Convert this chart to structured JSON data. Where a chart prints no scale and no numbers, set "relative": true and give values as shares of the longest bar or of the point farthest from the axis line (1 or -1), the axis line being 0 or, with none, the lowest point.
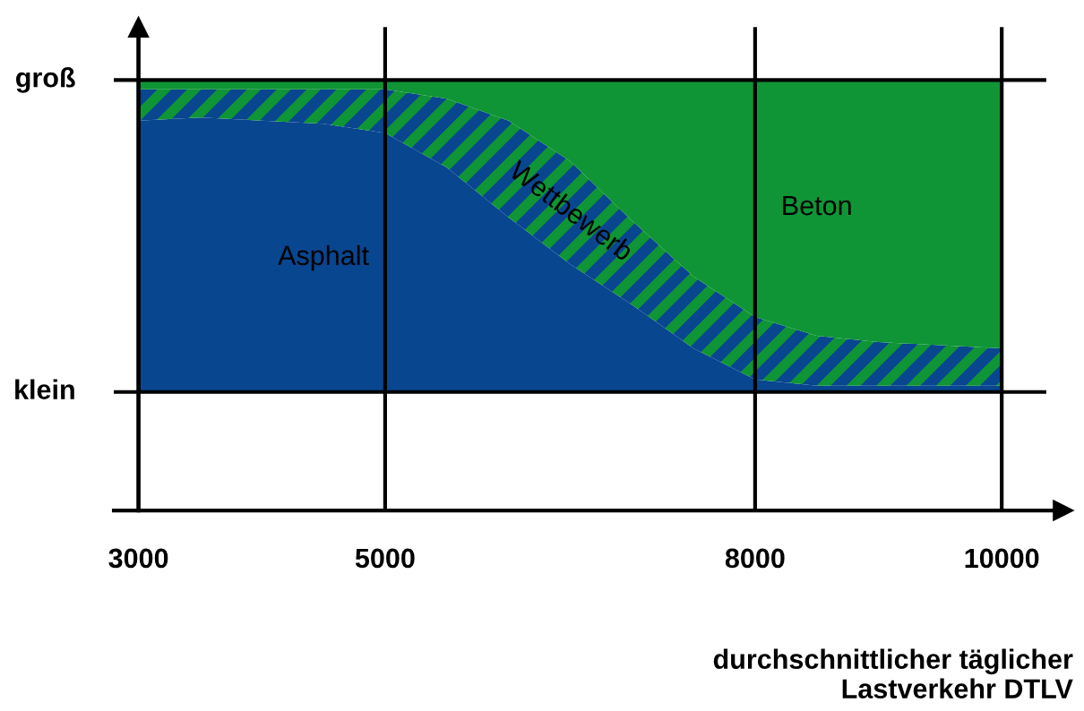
{
  "chart_data": {
    "type": "area",
    "stacked": true,
    "xlabel": "durchschnittlicher täglicher\nLastverkehr DTLV",
    "x": [
      3000,
      3500,
      4000,
      4500,
      5000,
      5500,
      6000,
      6500,
      7000,
      7500,
      8000,
      8500,
      9000,
      9500,
      10000
    ],
    "series": [
      {
        "name": "Asphalt",
        "color": "#08468f",
        "values": [
          0.87,
          0.88,
          0.87,
          0.86,
          0.83,
          0.72,
          0.56,
          0.41,
          0.28,
          0.14,
          0.04,
          0.02,
          0.02,
          0.02,
          0.02
        ]
      },
      {
        "name": "Wettbewerb",
        "color": "#0f9535",
        "values": [
          0.1,
          0.09,
          0.1,
          0.11,
          0.14,
          0.22,
          0.31,
          0.33,
          0.27,
          0.23,
          0.2,
          0.16,
          0.14,
          0.13,
          0.12
        ]
      },
      {
        "name": "Beton",
        "color": "#0f9535",
        "values": [
          0.03,
          0.03,
          0.03,
          0.03,
          0.03,
          0.06,
          0.13,
          0.26,
          0.45,
          0.63,
          0.76,
          0.82,
          0.84,
          0.85,
          0.86
        ]
      }
    ],
    "xlim": [
      2800,
      10500
    ],
    "xticks": [
      3000,
      5000,
      8000,
      10000
    ],
    "relative": true,
    "annotations": [
      "groß",
      "klein"
    ],
    "grid": true,
    "legend": false
  }
}
